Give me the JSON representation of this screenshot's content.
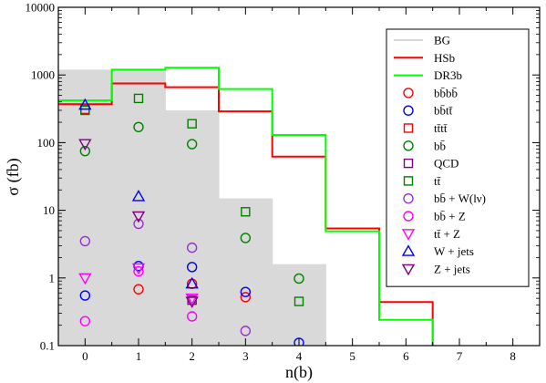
{
  "chart_data": {
    "type": "step+scatter",
    "xlabel": "n(b)",
    "ylabel": "σ (fb)",
    "xlim": [
      -0.5,
      8.5
    ],
    "ylim": [
      0.1,
      10000
    ],
    "yscale": "log",
    "xticks": [
      0,
      1,
      2,
      3,
      4,
      5,
      6,
      7,
      8
    ],
    "yticks": [
      {
        "v": 0.1,
        "label": "0.1"
      },
      {
        "v": 1,
        "label": "1"
      },
      {
        "v": 10,
        "label": "10"
      },
      {
        "v": 100,
        "label": "100"
      },
      {
        "v": 1000,
        "label": "1000"
      },
      {
        "v": 10000,
        "label": "10000"
      }
    ],
    "legend_position": "top-right",
    "bg": {
      "name": "BG",
      "color": "#d9d9d9",
      "edges": [
        -0.5,
        0.5,
        1.5,
        2.5,
        3.5,
        4.5
      ],
      "values": [
        1200,
        1200,
        300,
        15,
        1.6
      ]
    },
    "steps": [
      {
        "name": "HSb",
        "color": "#ff0000",
        "edges": [
          -0.5,
          0.5,
          1.5,
          2.5,
          3.5,
          4.5,
          5.5,
          6.5
        ],
        "values": [
          370,
          750,
          660,
          290,
          62,
          5.4,
          0.44
        ]
      },
      {
        "name": "DR3b",
        "color": "#00ff00",
        "edges": [
          -0.5,
          0.5,
          1.5,
          2.5,
          3.5,
          4.5,
          5.5,
          6.5
        ],
        "values": [
          420,
          1200,
          1280,
          620,
          130,
          4.9,
          0.24
        ]
      }
    ],
    "scatter": [
      {
        "name": "bb̄bb̄",
        "marker": "circle",
        "color": "#ff0000",
        "points": [
          [
            1,
            0.68
          ],
          [
            2,
            0.82
          ],
          [
            3,
            0.52
          ]
        ]
      },
      {
        "name": "bb̄tt̄",
        "marker": "circle",
        "color": "#0000ff",
        "points": [
          [
            0,
            0.55
          ],
          [
            1,
            1.5
          ],
          [
            2,
            1.45
          ],
          [
            3,
            0.62
          ],
          [
            4,
            0.11
          ]
        ]
      },
      {
        "name": "tt̄tt̄",
        "marker": "square",
        "color": "#ff0000",
        "points": [
          [
            0,
            310
          ]
        ]
      },
      {
        "name": "bb̄",
        "marker": "circle",
        "color": "#008000",
        "points": [
          [
            0,
            75
          ],
          [
            1,
            170
          ],
          [
            2,
            95
          ],
          [
            3,
            3.9
          ],
          [
            4,
            0.98
          ]
        ]
      },
      {
        "name": "QCD",
        "marker": "square",
        "color": "#800080",
        "points": [
          [
            2,
            0.47
          ]
        ]
      },
      {
        "name": "tt̄",
        "marker": "square",
        "color": "#008000",
        "points": [
          [
            0,
            300
          ],
          [
            1,
            450
          ],
          [
            2,
            190
          ],
          [
            3,
            9.5
          ],
          [
            4,
            0.45
          ]
        ]
      },
      {
        "name": "bb̄ + W(lν)",
        "marker": "circle",
        "color": "#9932cc",
        "points": [
          [
            0,
            3.5
          ],
          [
            1,
            6.3
          ],
          [
            2,
            2.8
          ],
          [
            3,
            0.165
          ]
        ]
      },
      {
        "name": "bb̄ + Z",
        "marker": "circle",
        "color": "#ff00ff",
        "points": [
          [
            0,
            0.23
          ],
          [
            1,
            1.25
          ],
          [
            2,
            0.27
          ]
        ]
      },
      {
        "name": "tt̄ + Z",
        "marker": "triangle-down",
        "color": "#ff00ff",
        "points": [
          [
            0,
            1.0
          ],
          [
            1,
            1.4
          ],
          [
            2,
            0.5
          ]
        ]
      },
      {
        "name": "W + jets",
        "marker": "triangle-up",
        "color": "#0000ff",
        "points": [
          [
            0,
            360
          ],
          [
            1,
            16
          ],
          [
            2,
            0.82
          ]
        ]
      },
      {
        "name": "Z + jets",
        "marker": "triangle-down",
        "color": "#800080",
        "points": [
          [
            0,
            96
          ],
          [
            1,
            8.2
          ],
          [
            2,
            0.45
          ]
        ]
      }
    ]
  }
}
